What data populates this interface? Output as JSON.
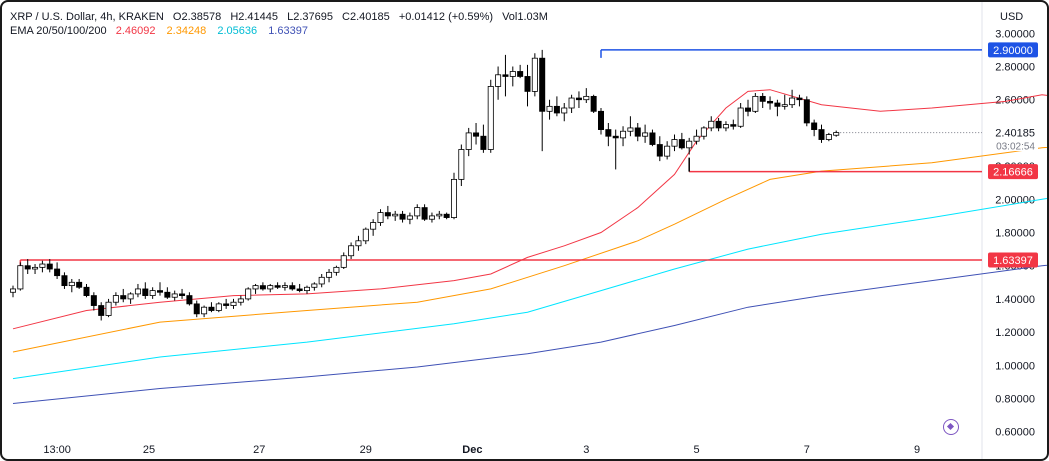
{
  "header": {
    "symbol": "XRP / U.S. Dollar, 4h, KRAKEN",
    "open": "O2.38578",
    "high": "H2.41445",
    "low": "L2.37695",
    "close": "C2.40185",
    "change": "+0.01412 (+0.59%)",
    "volume": "Vol1.03M",
    "ema_label": "EMA 20/50/100/200",
    "ema_values": [
      {
        "value": "2.46092",
        "color": "#f23645"
      },
      {
        "value": "2.34248",
        "color": "#ff9800"
      },
      {
        "value": "2.05636",
        "color": "#00bcd4"
      },
      {
        "value": "1.63397",
        "color": "#3f51b5"
      }
    ],
    "currency": "USD"
  },
  "chart_data": {
    "type": "candlestick",
    "y_ticks": [
      "3.00000",
      "2.80000",
      "2.60000",
      "2.40000",
      "2.20000",
      "2.00000",
      "1.80000",
      "1.60000",
      "1.40000",
      "1.20000",
      "1.00000",
      "0.80000",
      "0.60000"
    ],
    "ylim": [
      0.55,
      3.1
    ],
    "x_ticks": [
      "13:00",
      "25",
      "27",
      "29",
      "Dec",
      "3",
      "5",
      "7",
      "9"
    ],
    "current_price": "2.40185",
    "countdown": "03:02:54",
    "levels": [
      {
        "value": 2.9,
        "label": "2.90000",
        "color": "#1e53e5"
      },
      {
        "value": 2.16666,
        "label": "2.16666",
        "color": "#f23645"
      },
      {
        "value": 1.63397,
        "label": "1.63397",
        "color": "#f23645"
      }
    ],
    "colors": {
      "up": "#ffffff",
      "down": "#000000",
      "ema20": "#f23645",
      "ema50": "#ff9800",
      "ema100": "#00e5ff",
      "ema200": "#3f51b5"
    },
    "ema_series": {
      "ema20": [
        [
          0,
          1.22
        ],
        [
          10,
          1.33
        ],
        [
          20,
          1.38
        ],
        [
          30,
          1.42
        ],
        [
          40,
          1.43
        ],
        [
          50,
          1.46
        ],
        [
          60,
          1.51
        ],
        [
          65,
          1.55
        ],
        [
          70,
          1.65
        ],
        [
          75,
          1.72
        ],
        [
          80,
          1.8
        ],
        [
          85,
          1.95
        ],
        [
          90,
          2.15
        ],
        [
          93,
          2.35
        ],
        [
          97,
          2.55
        ],
        [
          100,
          2.65
        ],
        [
          103,
          2.66
        ],
        [
          110,
          2.57
        ],
        [
          118,
          2.53
        ],
        [
          125,
          2.55
        ],
        [
          135,
          2.59
        ],
        [
          140,
          2.63
        ],
        [
          145,
          2.6
        ],
        [
          148,
          2.57
        ]
      ],
      "ema50": [
        [
          0,
          1.08
        ],
        [
          20,
          1.26
        ],
        [
          40,
          1.33
        ],
        [
          55,
          1.38
        ],
        [
          65,
          1.46
        ],
        [
          75,
          1.6
        ],
        [
          85,
          1.75
        ],
        [
          90,
          1.85
        ],
        [
          97,
          2.0
        ],
        [
          103,
          2.12
        ],
        [
          110,
          2.17
        ],
        [
          125,
          2.22
        ],
        [
          140,
          2.31
        ],
        [
          148,
          2.34
        ]
      ],
      "ema100": [
        [
          0,
          0.92
        ],
        [
          20,
          1.05
        ],
        [
          40,
          1.14
        ],
        [
          60,
          1.25
        ],
        [
          70,
          1.32
        ],
        [
          80,
          1.45
        ],
        [
          90,
          1.58
        ],
        [
          100,
          1.7
        ],
        [
          110,
          1.79
        ],
        [
          125,
          1.89
        ],
        [
          140,
          2.0
        ],
        [
          148,
          2.056
        ]
      ],
      "ema200": [
        [
          0,
          0.77
        ],
        [
          20,
          0.86
        ],
        [
          40,
          0.93
        ],
        [
          55,
          0.99
        ],
        [
          70,
          1.07
        ],
        [
          80,
          1.14
        ],
        [
          90,
          1.24
        ],
        [
          100,
          1.35
        ],
        [
          110,
          1.42
        ],
        [
          125,
          1.51
        ],
        [
          140,
          1.6
        ],
        [
          148,
          1.634
        ]
      ]
    },
    "candles": [
      [
        1.44,
        1.48,
        1.41,
        1.46
      ],
      [
        1.46,
        1.62,
        1.45,
        1.6
      ],
      [
        1.6,
        1.64,
        1.55,
        1.58
      ],
      [
        1.58,
        1.61,
        1.55,
        1.59
      ],
      [
        1.59,
        1.63,
        1.56,
        1.61
      ],
      [
        1.61,
        1.64,
        1.56,
        1.58
      ],
      [
        1.58,
        1.62,
        1.52,
        1.54
      ],
      [
        1.54,
        1.56,
        1.46,
        1.48
      ],
      [
        1.48,
        1.52,
        1.44,
        1.5
      ],
      [
        1.5,
        1.52,
        1.46,
        1.47
      ],
      [
        1.47,
        1.49,
        1.41,
        1.42
      ],
      [
        1.42,
        1.44,
        1.33,
        1.36
      ],
      [
        1.36,
        1.38,
        1.27,
        1.3
      ],
      [
        1.3,
        1.4,
        1.29,
        1.38
      ],
      [
        1.38,
        1.44,
        1.36,
        1.42
      ],
      [
        1.42,
        1.46,
        1.38,
        1.4
      ],
      [
        1.4,
        1.44,
        1.37,
        1.43
      ],
      [
        1.43,
        1.49,
        1.41,
        1.46
      ],
      [
        1.46,
        1.5,
        1.4,
        1.42
      ],
      [
        1.42,
        1.47,
        1.4,
        1.45
      ],
      [
        1.45,
        1.5,
        1.42,
        1.44
      ],
      [
        1.44,
        1.47,
        1.4,
        1.41
      ],
      [
        1.41,
        1.45,
        1.39,
        1.43
      ],
      [
        1.43,
        1.46,
        1.4,
        1.42
      ],
      [
        1.42,
        1.44,
        1.36,
        1.37
      ],
      [
        1.37,
        1.39,
        1.29,
        1.31
      ],
      [
        1.31,
        1.36,
        1.29,
        1.35
      ],
      [
        1.35,
        1.38,
        1.32,
        1.33
      ],
      [
        1.33,
        1.38,
        1.32,
        1.37
      ],
      [
        1.37,
        1.4,
        1.34,
        1.36
      ],
      [
        1.36,
        1.4,
        1.34,
        1.38
      ],
      [
        1.38,
        1.42,
        1.36,
        1.4
      ],
      [
        1.4,
        1.47,
        1.39,
        1.46
      ],
      [
        1.46,
        1.49,
        1.43,
        1.48
      ],
      [
        1.48,
        1.5,
        1.45,
        1.46
      ],
      [
        1.46,
        1.49,
        1.44,
        1.48
      ],
      [
        1.48,
        1.5,
        1.46,
        1.47
      ],
      [
        1.47,
        1.5,
        1.45,
        1.48
      ],
      [
        1.48,
        1.5,
        1.45,
        1.46
      ],
      [
        1.46,
        1.49,
        1.44,
        1.45
      ],
      [
        1.45,
        1.48,
        1.43,
        1.47
      ],
      [
        1.47,
        1.5,
        1.45,
        1.49
      ],
      [
        1.49,
        1.55,
        1.47,
        1.53
      ],
      [
        1.53,
        1.58,
        1.5,
        1.56
      ],
      [
        1.56,
        1.6,
        1.54,
        1.59
      ],
      [
        1.59,
        1.68,
        1.58,
        1.66
      ],
      [
        1.66,
        1.74,
        1.64,
        1.72
      ],
      [
        1.72,
        1.78,
        1.69,
        1.75
      ],
      [
        1.75,
        1.83,
        1.73,
        1.82
      ],
      [
        1.82,
        1.88,
        1.78,
        1.86
      ],
      [
        1.86,
        1.94,
        1.84,
        1.92
      ],
      [
        1.92,
        1.96,
        1.88,
        1.9
      ],
      [
        1.9,
        1.93,
        1.87,
        1.91
      ],
      [
        1.91,
        1.93,
        1.86,
        1.88
      ],
      [
        1.88,
        1.92,
        1.85,
        1.9
      ],
      [
        1.9,
        1.97,
        1.88,
        1.95
      ],
      [
        1.95,
        1.97,
        1.87,
        1.88
      ],
      [
        1.88,
        1.92,
        1.86,
        1.9
      ],
      [
        1.9,
        1.93,
        1.88,
        1.91
      ],
      [
        1.91,
        1.92,
        1.88,
        1.89
      ],
      [
        1.89,
        2.16,
        1.88,
        2.12
      ],
      [
        2.12,
        2.33,
        2.08,
        2.3
      ],
      [
        2.3,
        2.43,
        2.26,
        2.4
      ],
      [
        2.4,
        2.46,
        2.33,
        2.38
      ],
      [
        2.38,
        2.45,
        2.28,
        2.3
      ],
      [
        2.3,
        2.72,
        2.28,
        2.68
      ],
      [
        2.68,
        2.8,
        2.6,
        2.75
      ],
      [
        2.75,
        2.87,
        2.62,
        2.74
      ],
      [
        2.74,
        2.8,
        2.68,
        2.77
      ],
      [
        2.77,
        2.81,
        2.73,
        2.74
      ],
      [
        2.74,
        2.81,
        2.56,
        2.65
      ],
      [
        2.65,
        2.88,
        2.62,
        2.85
      ],
      [
        2.85,
        2.9,
        2.29,
        2.53
      ],
      [
        2.53,
        2.6,
        2.48,
        2.56
      ],
      [
        2.56,
        2.62,
        2.5,
        2.52
      ],
      [
        2.52,
        2.58,
        2.47,
        2.55
      ],
      [
        2.55,
        2.63,
        2.52,
        2.61
      ],
      [
        2.61,
        2.65,
        2.55,
        2.6
      ],
      [
        2.6,
        2.67,
        2.58,
        2.62
      ],
      [
        2.62,
        2.63,
        2.52,
        2.53
      ],
      [
        2.53,
        2.55,
        2.39,
        2.42
      ],
      [
        2.42,
        2.46,
        2.32,
        2.38
      ],
      [
        2.38,
        2.42,
        2.18,
        2.37
      ],
      [
        2.37,
        2.44,
        2.32,
        2.41
      ],
      [
        2.41,
        2.5,
        2.38,
        2.43
      ],
      [
        2.43,
        2.46,
        2.35,
        2.38
      ],
      [
        2.38,
        2.45,
        2.34,
        2.4
      ],
      [
        2.4,
        2.42,
        2.32,
        2.33
      ],
      [
        2.33,
        2.38,
        2.23,
        2.26
      ],
      [
        2.26,
        2.35,
        2.24,
        2.32
      ],
      [
        2.32,
        2.39,
        2.29,
        2.36
      ],
      [
        2.36,
        2.4,
        2.3,
        2.31
      ],
      [
        2.31,
        2.37,
        2.27,
        2.35
      ],
      [
        2.35,
        2.42,
        2.33,
        2.38
      ],
      [
        2.38,
        2.44,
        2.36,
        2.43
      ],
      [
        2.43,
        2.5,
        2.41,
        2.47
      ],
      [
        2.47,
        2.49,
        2.41,
        2.43
      ],
      [
        2.43,
        2.47,
        2.41,
        2.45
      ],
      [
        2.45,
        2.48,
        2.42,
        2.44
      ],
      [
        2.44,
        2.58,
        2.43,
        2.55
      ],
      [
        2.55,
        2.6,
        2.5,
        2.53
      ],
      [
        2.53,
        2.64,
        2.52,
        2.62
      ],
      [
        2.62,
        2.64,
        2.55,
        2.59
      ],
      [
        2.59,
        2.62,
        2.54,
        2.58
      ],
      [
        2.58,
        2.6,
        2.5,
        2.56
      ],
      [
        2.56,
        2.63,
        2.54,
        2.57
      ],
      [
        2.57,
        2.66,
        2.55,
        2.61
      ],
      [
        2.61,
        2.63,
        2.56,
        2.6
      ],
      [
        2.6,
        2.62,
        2.44,
        2.46
      ],
      [
        2.46,
        2.48,
        2.38,
        2.42
      ],
      [
        2.42,
        2.45,
        2.34,
        2.36
      ],
      [
        2.36,
        2.4,
        2.35,
        2.39
      ],
      [
        2.386,
        2.414,
        2.377,
        2.402
      ]
    ]
  }
}
